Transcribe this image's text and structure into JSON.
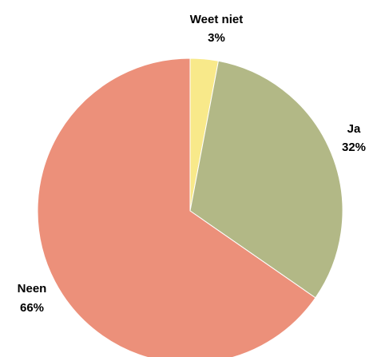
{
  "chart_data": {
    "type": "pie",
    "title": "",
    "start_angle_deg": 0,
    "direction": "clockwise",
    "slices": [
      {
        "label": "Weet niet",
        "value": 3,
        "value_label": "3%",
        "color": "#F8E98A"
      },
      {
        "label": "Ja",
        "value": 32,
        "value_label": "32%",
        "color": "#B2B886"
      },
      {
        "label": "Neen",
        "value": 66,
        "value_label": "66%",
        "color": "#EC907A"
      }
    ],
    "legend": "none",
    "data_labels": "outside, category and percentage on two lines"
  }
}
